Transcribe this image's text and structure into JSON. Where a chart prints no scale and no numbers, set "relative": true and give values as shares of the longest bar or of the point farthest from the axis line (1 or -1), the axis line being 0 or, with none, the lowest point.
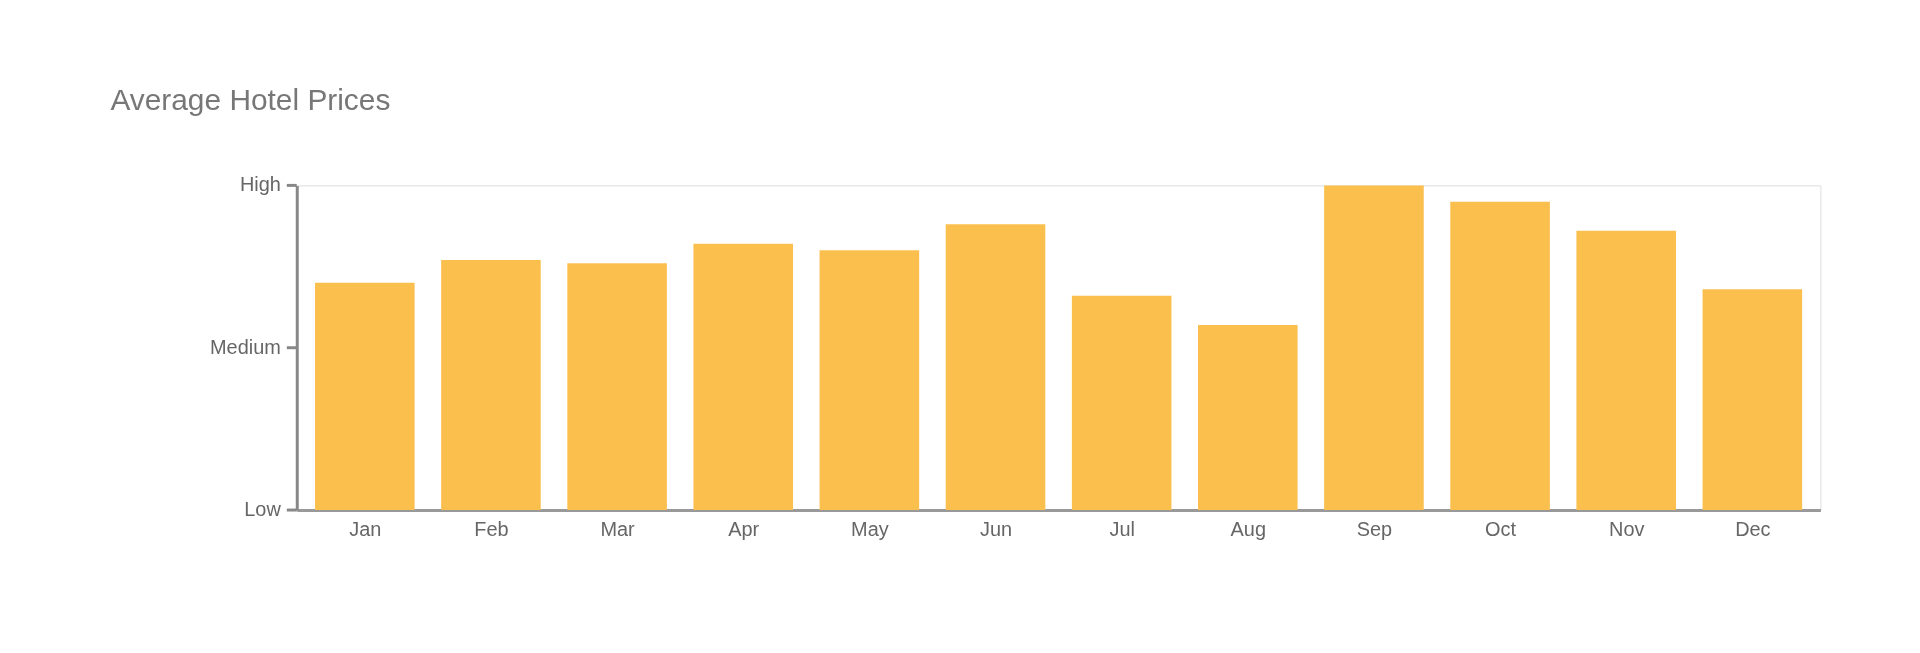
{
  "chart_data": {
    "type": "bar",
    "title": "Average Hotel Prices",
    "categories": [
      "Jan",
      "Feb",
      "Mar",
      "Apr",
      "May",
      "Jun",
      "Jul",
      "Aug",
      "Sep",
      "Oct",
      "Nov",
      "Dec"
    ],
    "values": [
      0.7,
      0.77,
      0.76,
      0.82,
      0.8,
      0.88,
      0.66,
      0.57,
      1.0,
      0.95,
      0.86,
      0.68
    ],
    "color": "#fbbf4e",
    "relative": true,
    "annotations": [
      "High",
      "Medium",
      "Low"
    ],
    "grid": false
  }
}
